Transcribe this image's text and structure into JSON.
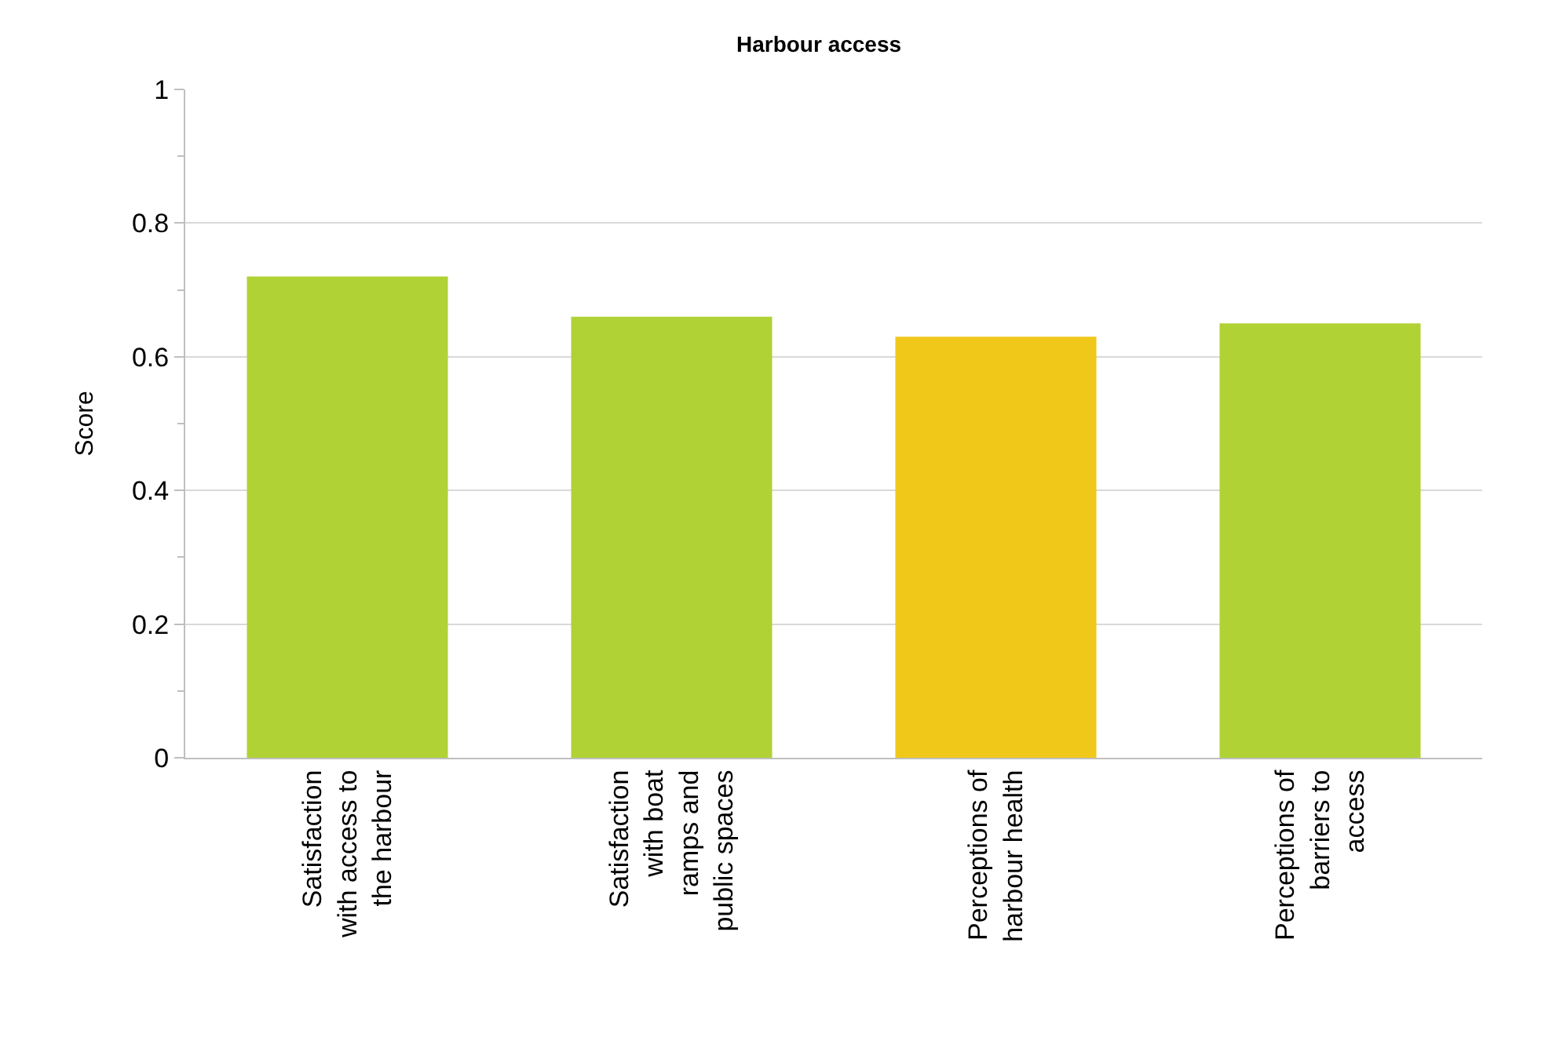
{
  "chart_data": {
    "type": "bar",
    "title": "Harbour access",
    "ylabel": "Score",
    "categories": [
      "Satisfaction with access to the harbour",
      "Satisfaction with boat ramps and public spaces",
      "Perceptions of harbour health",
      "Perceptions of barriers to access"
    ],
    "values": [
      0.72,
      0.66,
      0.63,
      0.65
    ],
    "colors": [
      "#b0d235",
      "#b0d235",
      "#f0c81a",
      "#b0d235"
    ],
    "ylim": [
      0,
      1
    ],
    "yticks": [
      0,
      0.2,
      0.4,
      0.6,
      0.8,
      1
    ],
    "grid": "y"
  }
}
